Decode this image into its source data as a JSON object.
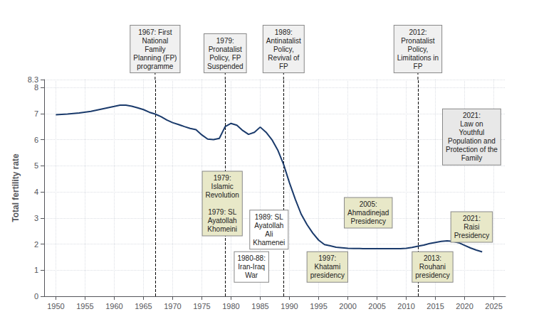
{
  "chart_data": {
    "type": "line",
    "ylabel": "Total fertility rate",
    "x": [
      1950,
      1952,
      1954,
      1956,
      1958,
      1960,
      1961,
      1962,
      1963,
      1964,
      1965,
      1966,
      1967,
      1968,
      1969,
      1970,
      1971,
      1972,
      1973,
      1974,
      1975,
      1976,
      1977,
      1978,
      1979,
      1980,
      1981,
      1982,
      1983,
      1984,
      1985,
      1986,
      1987,
      1988,
      1989,
      1990,
      1991,
      1992,
      1993,
      1994,
      1995,
      1996,
      1997,
      1998,
      1999,
      2000,
      2001,
      2002,
      2003,
      2004,
      2005,
      2006,
      2007,
      2008,
      2009,
      2010,
      2011,
      2012,
      2013,
      2014,
      2015,
      2016,
      2017,
      2018,
      2019,
      2020,
      2021,
      2022,
      2023
    ],
    "values": [
      6.95,
      6.98,
      7.02,
      7.08,
      7.18,
      7.27,
      7.32,
      7.32,
      7.28,
      7.22,
      7.15,
      7.05,
      6.98,
      6.88,
      6.75,
      6.65,
      6.58,
      6.5,
      6.43,
      6.38,
      6.18,
      6.02,
      6.0,
      6.05,
      6.5,
      6.62,
      6.55,
      6.35,
      6.2,
      6.28,
      6.48,
      6.28,
      6.0,
      5.6,
      5.05,
      4.35,
      3.72,
      3.15,
      2.75,
      2.42,
      2.15,
      1.98,
      1.93,
      1.88,
      1.86,
      1.84,
      1.83,
      1.83,
      1.82,
      1.82,
      1.82,
      1.82,
      1.82,
      1.82,
      1.82,
      1.84,
      1.87,
      1.92,
      1.96,
      2.02,
      2.06,
      2.1,
      2.12,
      2.1,
      2.05,
      1.95,
      1.85,
      1.77,
      1.7
    ],
    "color": "#1a3a6b",
    "xlim": [
      1948,
      2027
    ],
    "ylim": [
      0,
      8.3
    ],
    "xticks": [
      1950,
      1955,
      1960,
      1965,
      1970,
      1975,
      1980,
      1985,
      1990,
      1995,
      2000,
      2005,
      2010,
      2015,
      2020,
      2025
    ],
    "yticks": [
      0,
      1,
      2,
      3,
      4,
      5,
      6,
      7,
      8
    ],
    "grid": true,
    "vlines": [
      {
        "x": 1967,
        "label": "1967: First\nNational\nFamily\nPlanning (FP)\nprogramme"
      },
      {
        "x": 1979,
        "label": "1979:\nPronatalist\nPolicy, FP\nSuspended"
      },
      {
        "x": 1989,
        "label": "1989:\nAntinatalist\nPolicy,\nRevival of\nFP"
      },
      {
        "x": 2012,
        "label": "2012:\nPronatalist\nPolicy,\nLimitations in\nFP"
      }
    ],
    "annotations": [
      {
        "x": 1978.5,
        "y": 3.55,
        "text": "1979:\nIslamic\nRevolution\n\n1979: SL\nAyatollah\nKhomeini",
        "color": "#e8e8c8"
      },
      {
        "x": 1986.5,
        "y": 2.55,
        "text": "1989: SL\nAyatollah\nAli\nKhamenei",
        "color": "#ffffff"
      },
      {
        "x": 2003.5,
        "y": 3.2,
        "text": "2005:\nAhmadinejad\nPresidency",
        "color": "#e8e8c8"
      },
      {
        "x": 2021.2,
        "y": 2.65,
        "text": "2021:\nRaisi\nPresidency",
        "color": "#e8e8c8"
      },
      {
        "x": 2021.2,
        "y": 6.1,
        "text": "2021:\nLaw on\nYouthful\nPopulation and\nProtection of the\nFamily",
        "color": "#e8e8e8"
      }
    ],
    "bottom_annotations": [
      {
        "x": 1983.5,
        "y": 0.55,
        "text": "1980-88:\nIran-Iraq\nWar",
        "color": "#ffffff"
      },
      {
        "x": 1996.5,
        "y": 0.55,
        "text": "1997:\nKhatami\npresidency",
        "color": "#e8e8c8"
      },
      {
        "x": 2014.5,
        "y": 0.55,
        "text": "2013:\nRouhani\npresidency",
        "color": "#e8e8c8"
      }
    ]
  }
}
